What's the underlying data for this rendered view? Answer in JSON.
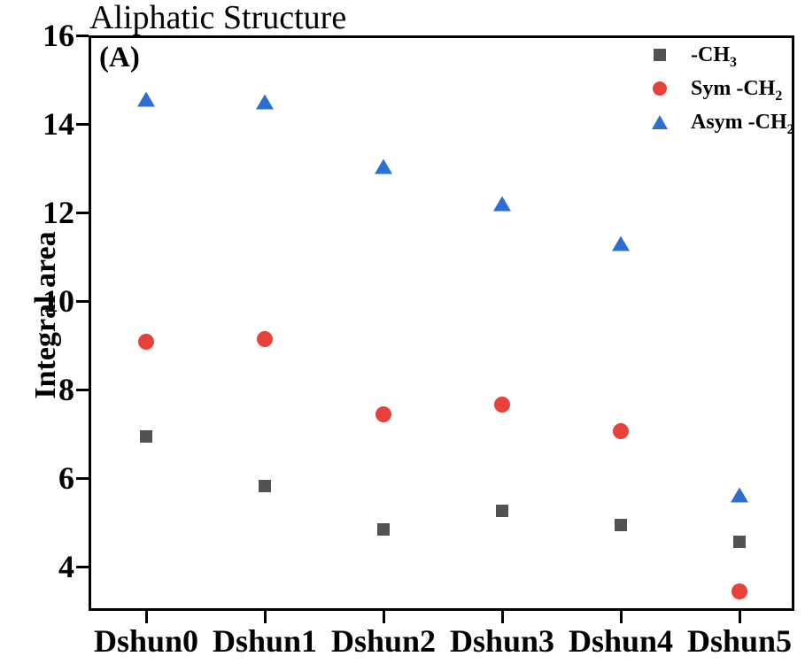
{
  "title": "Aliphatic Structure",
  "panel_label": "(A)",
  "chart_data": {
    "type": "scatter",
    "title": "Aliphatic Structure",
    "panel_label": "(A)",
    "categories": [
      "Dshun0",
      "Dshun1",
      "Dshun2",
      "Dshun3",
      "Dshun4",
      "Dshun5"
    ],
    "series": [
      {
        "name": "-CH3",
        "legend_main": "-CH",
        "legend_sub": "3",
        "marker": "square",
        "color": "#525252",
        "values": [
          6.95,
          5.82,
          4.84,
          5.27,
          4.94,
          4.56
        ]
      },
      {
        "name": "Sym -CH2",
        "legend_main": "Sym -CH",
        "legend_sub": "2",
        "marker": "circle",
        "color": "#e8403a",
        "values": [
          9.08,
          9.14,
          7.45,
          7.66,
          7.06,
          3.44
        ]
      },
      {
        "name": "Asym -CH2",
        "legend_main": "Asym -CH",
        "legend_sub": "2",
        "marker": "triangle",
        "color": "#2b6fd0",
        "values": [
          14.57,
          14.5,
          13.05,
          12.2,
          11.3,
          5.62
        ]
      }
    ],
    "xlabel": "",
    "ylabel": "Integral area",
    "yticks": [
      16,
      14,
      12,
      10,
      8,
      6,
      4
    ],
    "ylim": [
      3,
      16
    ],
    "grid": false,
    "legend_position": "top-right",
    "axis_color": "#000000",
    "background_color": "#ffffff"
  }
}
